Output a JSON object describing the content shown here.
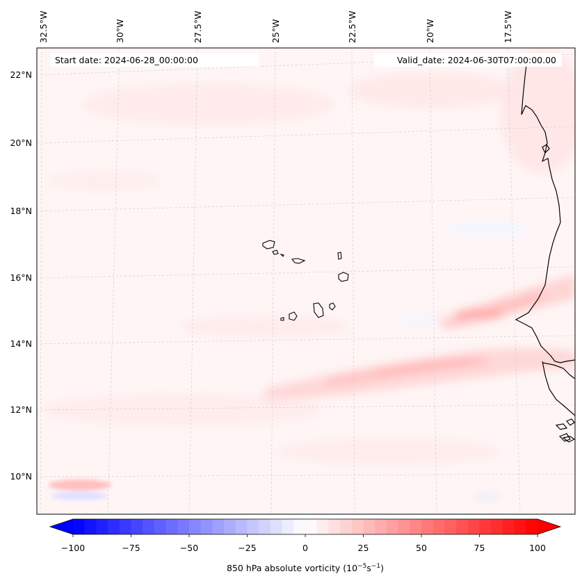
{
  "map": {
    "start_label": "Start date: 2024-06-28_00:00:00",
    "valid_label": "Valid_date: 2024-06-30T07:00:00.00",
    "lon_labels": [
      "32.5°W",
      "30°W",
      "27.5°W",
      "25°W",
      "22.5°W",
      "20°W",
      "17.5°W"
    ],
    "lat_labels": [
      "22°N",
      "20°N",
      "18°N",
      "16°N",
      "14°N",
      "12°N",
      "10°N"
    ]
  },
  "colorbar": {
    "ticks": [
      "−100",
      "−75",
      "−50",
      "−25",
      "0",
      "25",
      "50",
      "75",
      "100"
    ],
    "label_main": "850 hPa absolute vorticity (10",
    "label_exp1": "−5",
    "label_mid": "s",
    "label_exp2": "−1",
    "label_end": ")",
    "negative_color": "#0000ff",
    "zero_color": "#ffffff",
    "positive_color": "#ff0000"
  },
  "chart_data": {
    "type": "heatmap",
    "variable": "850 hPa absolute vorticity",
    "units": "10^-5 s^-1",
    "color_range": [
      -100,
      100
    ],
    "colormap": "bwr",
    "lon_range": [
      -32.5,
      -15.5
    ],
    "lat_range": [
      9,
      22.8
    ]
  }
}
